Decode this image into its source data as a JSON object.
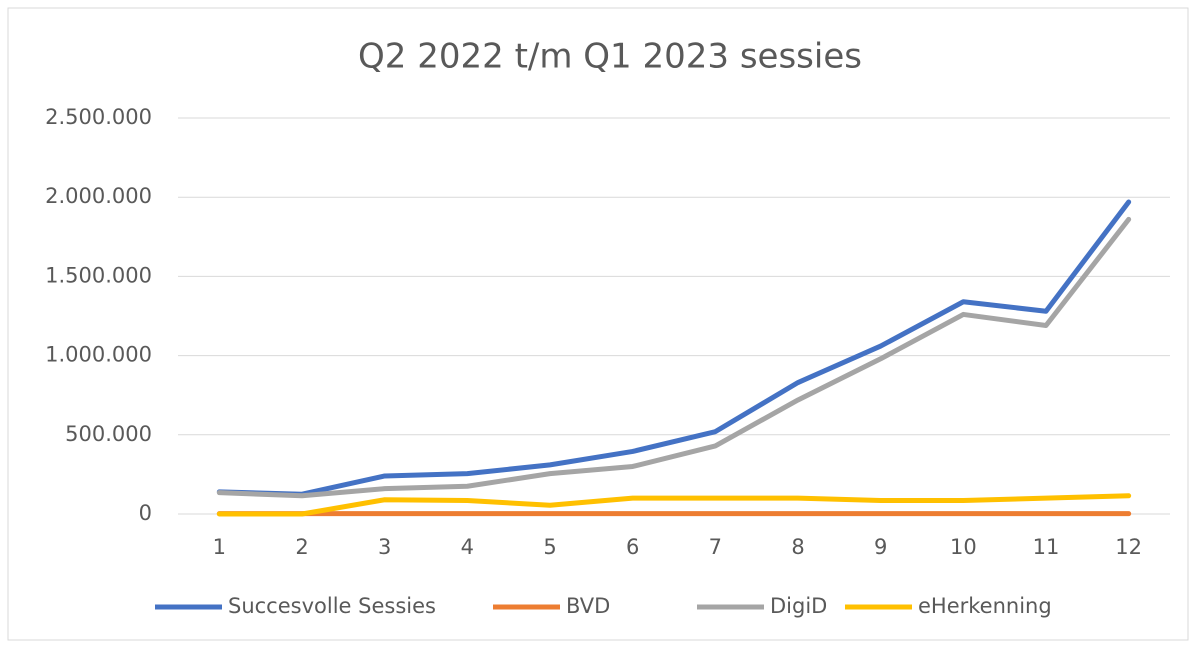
{
  "chart_data": {
    "type": "line",
    "title": "Q2 2022 t/m Q1 2023 sessies",
    "categories": [
      "1",
      "2",
      "3",
      "4",
      "5",
      "6",
      "7",
      "8",
      "9",
      "10",
      "11",
      "12"
    ],
    "series": [
      {
        "name": "Succesvolle Sessies",
        "color": "#4472c4",
        "values": [
          140000,
          125000,
          240000,
          255000,
          310000,
          395000,
          520000,
          830000,
          1060000,
          1340000,
          1280000,
          1970000
        ]
      },
      {
        "name": "BVD",
        "color": "#ed7d31",
        "values": [
          2000,
          2000,
          2000,
          2000,
          2000,
          2000,
          2000,
          2000,
          2000,
          2000,
          2000,
          2000
        ]
      },
      {
        "name": "DigiD",
        "color": "#a5a5a5",
        "values": [
          135000,
          115000,
          160000,
          175000,
          255000,
          300000,
          430000,
          720000,
          980000,
          1260000,
          1190000,
          1860000
        ]
      },
      {
        "name": "eHerkenning",
        "color": "#ffc000",
        "values": [
          0,
          0,
          90000,
          85000,
          55000,
          100000,
          100000,
          100000,
          85000,
          85000,
          100000,
          115000
        ]
      }
    ],
    "ylim": [
      0,
      2500000
    ],
    "yticks": [
      0,
      {
        "value": 500000,
        "label": "500.000"
      },
      {
        "value": 1000000,
        "label": "1.000.000"
      },
      {
        "value": 1500000,
        "label": "1.500.000"
      },
      {
        "value": 2000000,
        "label": "2.000.000"
      },
      {
        "value": 2500000,
        "label": "2.500.000"
      }
    ],
    "grid": true,
    "legend": "bottom"
  }
}
